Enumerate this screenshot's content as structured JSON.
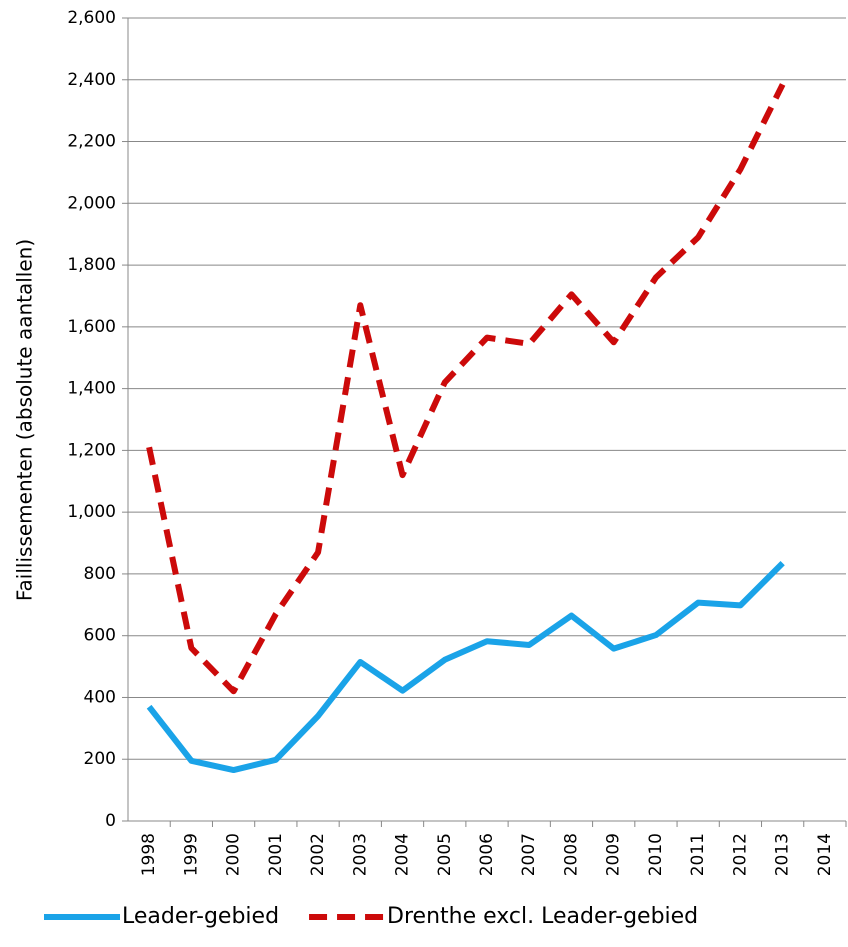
{
  "chart_data": {
    "type": "line",
    "y_label": "Faillissementen (absolute aantallen)",
    "categories": [
      "1998",
      "1999",
      "2000",
      "2001",
      "2002",
      "2003",
      "2004",
      "2005",
      "2006",
      "2007",
      "2008",
      "2009",
      "2010",
      "2011",
      "2012",
      "2013",
      "2014"
    ],
    "series": [
      {
        "name": "Leader-gebied",
        "color": "#1aa3e8",
        "dash": false,
        "values": [
          370,
          195,
          165,
          198,
          340,
          515,
          422,
          522,
          582,
          570,
          665,
          558,
          602,
          707,
          698,
          835,
          null
        ]
      },
      {
        "name": "Drenthe excl. Leader-gebied",
        "color": "#cc0a0a",
        "dash": true,
        "values": [
          1210,
          560,
          420,
          670,
          870,
          1670,
          1120,
          1420,
          1565,
          1545,
          1705,
          1550,
          1760,
          1890,
          2110,
          2385,
          null
        ]
      }
    ],
    "ylim": [
      0,
      2600
    ],
    "yticks": [
      0,
      200,
      400,
      600,
      800,
      {
        "value": 1000,
        "label": "1,000"
      },
      {
        "value": 1200,
        "label": "1,200"
      },
      {
        "value": 1400,
        "label": "1,400"
      },
      {
        "value": 1600,
        "label": "1,600"
      },
      {
        "value": 1800,
        "label": "1,800"
      },
      {
        "value": 2000,
        "label": "2,000"
      },
      {
        "value": 2200,
        "label": "2,200"
      },
      {
        "value": 2400,
        "label": "2,400"
      },
      {
        "value": 2600,
        "label": "2,600"
      }
    ],
    "grid": true,
    "legend": "bottom"
  }
}
